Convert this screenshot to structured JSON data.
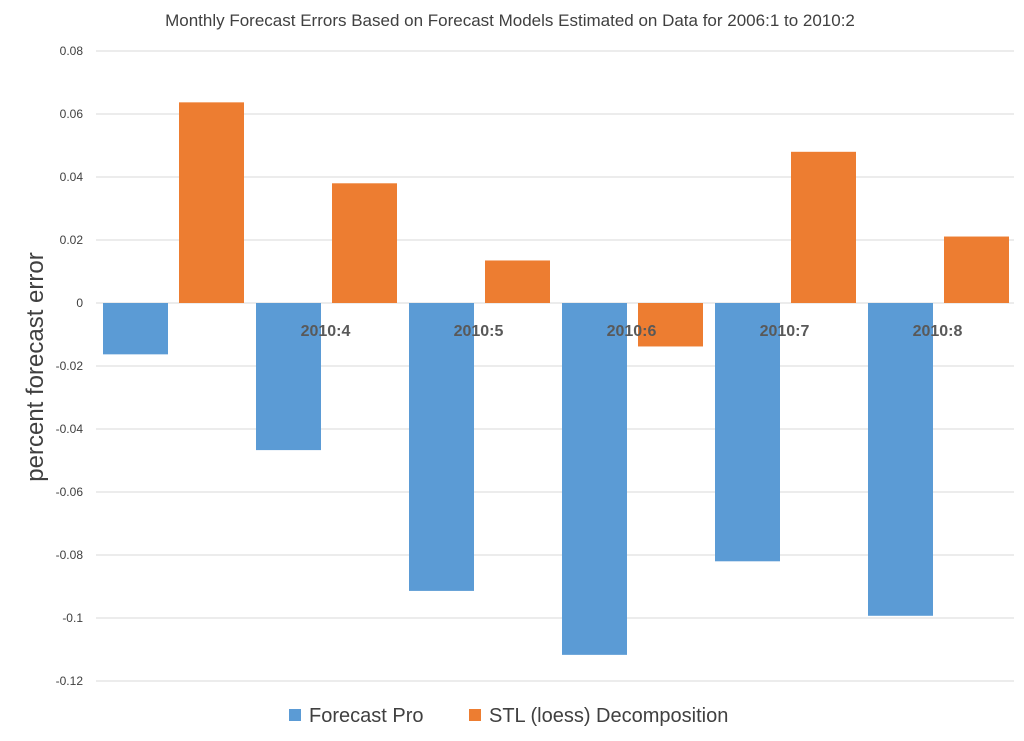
{
  "chart_data": {
    "type": "bar",
    "title": "Monthly Forecast Errors Based on Forecast Models Estimated on Data for 2006:1 to 2010:2",
    "xlabel": "",
    "ylabel": "percent forecast error",
    "categories": [
      "",
      "2010:4",
      "2010:5",
      "2010:6",
      "2010:7",
      "2010:8"
    ],
    "series": [
      {
        "name": "Forecast Pro",
        "color": "#5B9BD5",
        "values": [
          -0.0163,
          -0.0467,
          -0.0914,
          -0.1117,
          -0.082,
          -0.0993
        ]
      },
      {
        "name": "STL (loess) Decomposition",
        "color": "#ED7D31",
        "values": [
          0.0637,
          0.038,
          0.0135,
          -0.0138,
          0.048,
          0.0211
        ]
      }
    ],
    "ylim": [
      -0.12,
      0.08
    ],
    "yticks": [
      0.08,
      0.06,
      0.04,
      0.02,
      0,
      -0.02,
      -0.04,
      -0.06,
      -0.08,
      -0.1,
      -0.12
    ],
    "ytick_labels": [
      "0.08",
      "0.06",
      "0.04",
      "0.02",
      "0",
      "-0.02",
      "-0.04",
      "-0.06",
      "-0.08",
      "-0.1",
      "-0.12"
    ],
    "grid": true,
    "gridline_color": "#D9D9D9",
    "legend_position": "bottom"
  }
}
